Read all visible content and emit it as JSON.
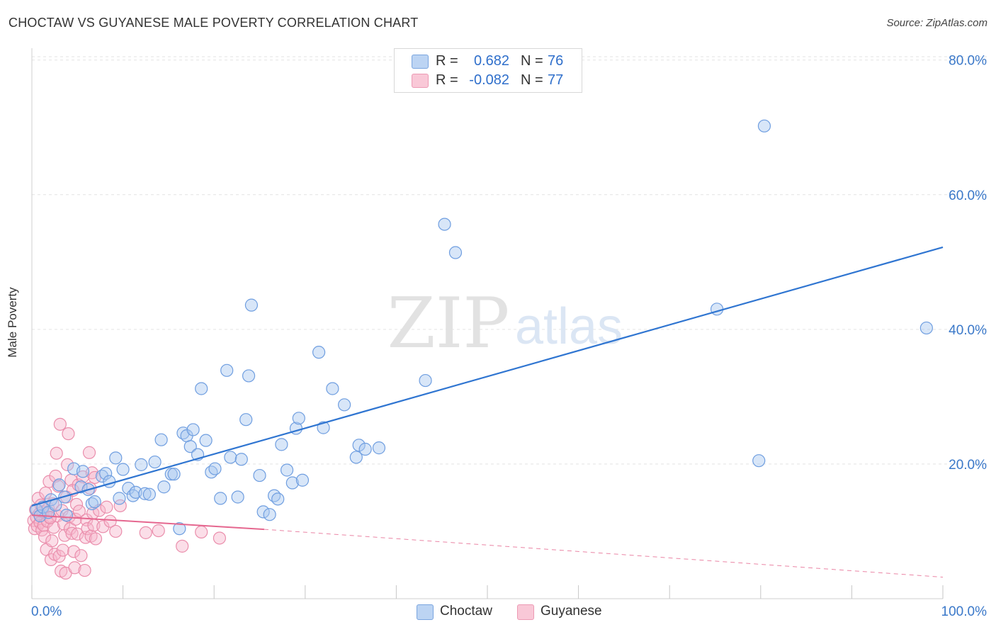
{
  "title": "CHOCTAW VS GUYANESE MALE POVERTY CORRELATION CHART",
  "source": "Source: ZipAtlas.com",
  "watermark": {
    "zip": "ZIP",
    "atlas": "atlas"
  },
  "colors": {
    "choctaw_fill": "#a8c8f0",
    "choctaw_stroke": "#6f9ee0",
    "choctaw_line": "#2f75d1",
    "guyanese_fill": "#f6b6cb",
    "guyanese_stroke": "#ea8eac",
    "guyanese_line": "#e5678f",
    "tick_label": "#3a78c9"
  },
  "legend_top": {
    "rows": [
      {
        "r_label": "R =",
        "r_value": "0.682",
        "n_label": "N =",
        "n_value": "76"
      },
      {
        "r_label": "R =",
        "r_value": "-0.082",
        "n_label": "N =",
        "n_value": "77"
      }
    ]
  },
  "legend_bottom": {
    "items": [
      "Choctaw",
      "Guyanese"
    ]
  },
  "chart_data": {
    "type": "scatter",
    "title": "CHOCTAW VS GUYANESE MALE POVERTY CORRELATION CHART",
    "xlabel": "",
    "ylabel": "Male Poverty",
    "xlim": [
      0,
      100
    ],
    "ylim": [
      0,
      80
    ],
    "x_tick_labels": [
      "0.0%",
      "100.0%"
    ],
    "y_ticks": [
      20,
      40,
      60,
      80
    ],
    "y_tick_labels": [
      "20.0%",
      "40.0%",
      "60.0%",
      "80.0%"
    ],
    "grid": true,
    "legend_position": "top-center",
    "series": [
      {
        "name": "Choctaw",
        "r": 0.682,
        "n": 76,
        "trend": {
          "x": [
            0,
            100
          ],
          "y": [
            13.8,
            52.2
          ],
          "dashed_x": null
        },
        "points": [
          [
            0.5,
            13.2
          ],
          [
            0.9,
            12.3
          ],
          [
            1.2,
            13.6
          ],
          [
            1.8,
            12.8
          ],
          [
            2.1,
            14.7
          ],
          [
            2.6,
            13.9
          ],
          [
            3.0,
            16.9
          ],
          [
            3.6,
            15.1
          ],
          [
            3.8,
            12.4
          ],
          [
            4.6,
            19.3
          ],
          [
            5.4,
            16.6
          ],
          [
            5.6,
            18.9
          ],
          [
            6.2,
            16.2
          ],
          [
            6.6,
            14.1
          ],
          [
            6.9,
            14.4
          ],
          [
            7.7,
            18.2
          ],
          [
            8.1,
            18.6
          ],
          [
            8.5,
            17.4
          ],
          [
            9.2,
            20.9
          ],
          [
            9.6,
            14.9
          ],
          [
            10.0,
            19.2
          ],
          [
            10.6,
            16.4
          ],
          [
            11.1,
            15.3
          ],
          [
            11.4,
            15.8
          ],
          [
            12.0,
            19.9
          ],
          [
            12.4,
            15.6
          ],
          [
            12.9,
            15.5
          ],
          [
            13.5,
            20.3
          ],
          [
            14.2,
            23.6
          ],
          [
            14.5,
            16.6
          ],
          [
            15.3,
            18.5
          ],
          [
            15.6,
            18.5
          ],
          [
            16.2,
            10.4
          ],
          [
            16.6,
            24.6
          ],
          [
            17.0,
            24.2
          ],
          [
            17.4,
            22.6
          ],
          [
            17.7,
            25.1
          ],
          [
            18.2,
            21.4
          ],
          [
            18.6,
            31.2
          ],
          [
            19.1,
            23.5
          ],
          [
            19.7,
            18.8
          ],
          [
            20.1,
            19.3
          ],
          [
            20.7,
            14.9
          ],
          [
            21.4,
            33.9
          ],
          [
            21.8,
            21.0
          ],
          [
            22.6,
            15.1
          ],
          [
            23.0,
            20.7
          ],
          [
            23.5,
            26.6
          ],
          [
            23.8,
            33.1
          ],
          [
            24.1,
            43.6
          ],
          [
            25.0,
            18.3
          ],
          [
            25.4,
            12.9
          ],
          [
            26.1,
            12.5
          ],
          [
            26.6,
            15.3
          ],
          [
            27.0,
            14.8
          ],
          [
            27.4,
            22.9
          ],
          [
            28.0,
            19.1
          ],
          [
            28.6,
            17.2
          ],
          [
            29.0,
            25.3
          ],
          [
            29.3,
            26.8
          ],
          [
            29.7,
            17.6
          ],
          [
            31.5,
            36.6
          ],
          [
            32.0,
            25.4
          ],
          [
            33.0,
            31.2
          ],
          [
            34.3,
            28.8
          ],
          [
            35.6,
            21.0
          ],
          [
            35.9,
            22.8
          ],
          [
            36.6,
            22.2
          ],
          [
            38.1,
            22.4
          ],
          [
            43.2,
            32.4
          ],
          [
            45.3,
            55.6
          ],
          [
            46.5,
            51.4
          ],
          [
            75.2,
            43.0
          ],
          [
            79.8,
            20.5
          ],
          [
            80.4,
            70.2
          ],
          [
            98.2,
            40.2
          ]
        ]
      },
      {
        "name": "Guyanese",
        "r": -0.082,
        "n": 77,
        "trend": {
          "x": [
            0,
            25.5
          ],
          "y": [
            12.4,
            10.3
          ],
          "dashed_x": [
            25.5,
            100
          ],
          "dashed_y": [
            10.3,
            3.2
          ]
        },
        "points": [
          [
            0.2,
            11.6
          ],
          [
            0.3,
            10.4
          ],
          [
            0.4,
            13.2
          ],
          [
            0.5,
            12.1
          ],
          [
            0.6,
            10.8
          ],
          [
            0.7,
            14.9
          ],
          [
            0.8,
            12.6
          ],
          [
            0.9,
            11.3
          ],
          [
            1.0,
            13.9
          ],
          [
            1.1,
            10.2
          ],
          [
            1.2,
            12.9
          ],
          [
            1.3,
            10.9
          ],
          [
            1.4,
            9.2
          ],
          [
            1.5,
            15.7
          ],
          [
            1.6,
            7.3
          ],
          [
            1.7,
            11.5
          ],
          [
            1.8,
            13.4
          ],
          [
            1.9,
            17.4
          ],
          [
            2.0,
            12.1
          ],
          [
            2.1,
            5.8
          ],
          [
            2.2,
            8.6
          ],
          [
            2.3,
            14.1
          ],
          [
            2.4,
            10.6
          ],
          [
            2.5,
            6.6
          ],
          [
            2.6,
            18.2
          ],
          [
            2.7,
            21.6
          ],
          [
            2.8,
            12.3
          ],
          [
            2.9,
            16.7
          ],
          [
            3.0,
            6.3
          ],
          [
            3.1,
            25.9
          ],
          [
            3.2,
            4.1
          ],
          [
            3.3,
            13.1
          ],
          [
            3.4,
            7.2
          ],
          [
            3.5,
            11.1
          ],
          [
            3.6,
            9.4
          ],
          [
            3.7,
            3.8
          ],
          [
            3.8,
            15.1
          ],
          [
            3.9,
            19.9
          ],
          [
            4.0,
            24.5
          ],
          [
            4.1,
            12.2
          ],
          [
            4.2,
            10.4
          ],
          [
            4.3,
            17.6
          ],
          [
            4.4,
            9.7
          ],
          [
            4.5,
            16.1
          ],
          [
            4.6,
            7.0
          ],
          [
            4.7,
            4.6
          ],
          [
            4.8,
            11.8
          ],
          [
            4.9,
            14.0
          ],
          [
            5.0,
            9.6
          ],
          [
            5.1,
            16.9
          ],
          [
            5.2,
            13.0
          ],
          [
            5.4,
            6.4
          ],
          [
            5.6,
            18.1
          ],
          [
            5.8,
            4.2
          ],
          [
            5.9,
            9.1
          ],
          [
            6.0,
            11.7
          ],
          [
            6.1,
            10.4
          ],
          [
            6.3,
            21.7
          ],
          [
            6.4,
            16.4
          ],
          [
            6.5,
            9.3
          ],
          [
            6.6,
            18.7
          ],
          [
            6.7,
            12.7
          ],
          [
            6.8,
            10.9
          ],
          [
            6.9,
            18.0
          ],
          [
            7.0,
            8.9
          ],
          [
            7.4,
            13.1
          ],
          [
            7.8,
            10.7
          ],
          [
            8.2,
            13.6
          ],
          [
            8.6,
            11.5
          ],
          [
            9.2,
            10.0
          ],
          [
            9.7,
            13.8
          ],
          [
            12.5,
            9.8
          ],
          [
            13.9,
            10.1
          ],
          [
            16.5,
            7.8
          ],
          [
            18.6,
            9.9
          ],
          [
            20.6,
            9.0
          ],
          [
            2.0,
            12.0
          ]
        ]
      }
    ]
  }
}
